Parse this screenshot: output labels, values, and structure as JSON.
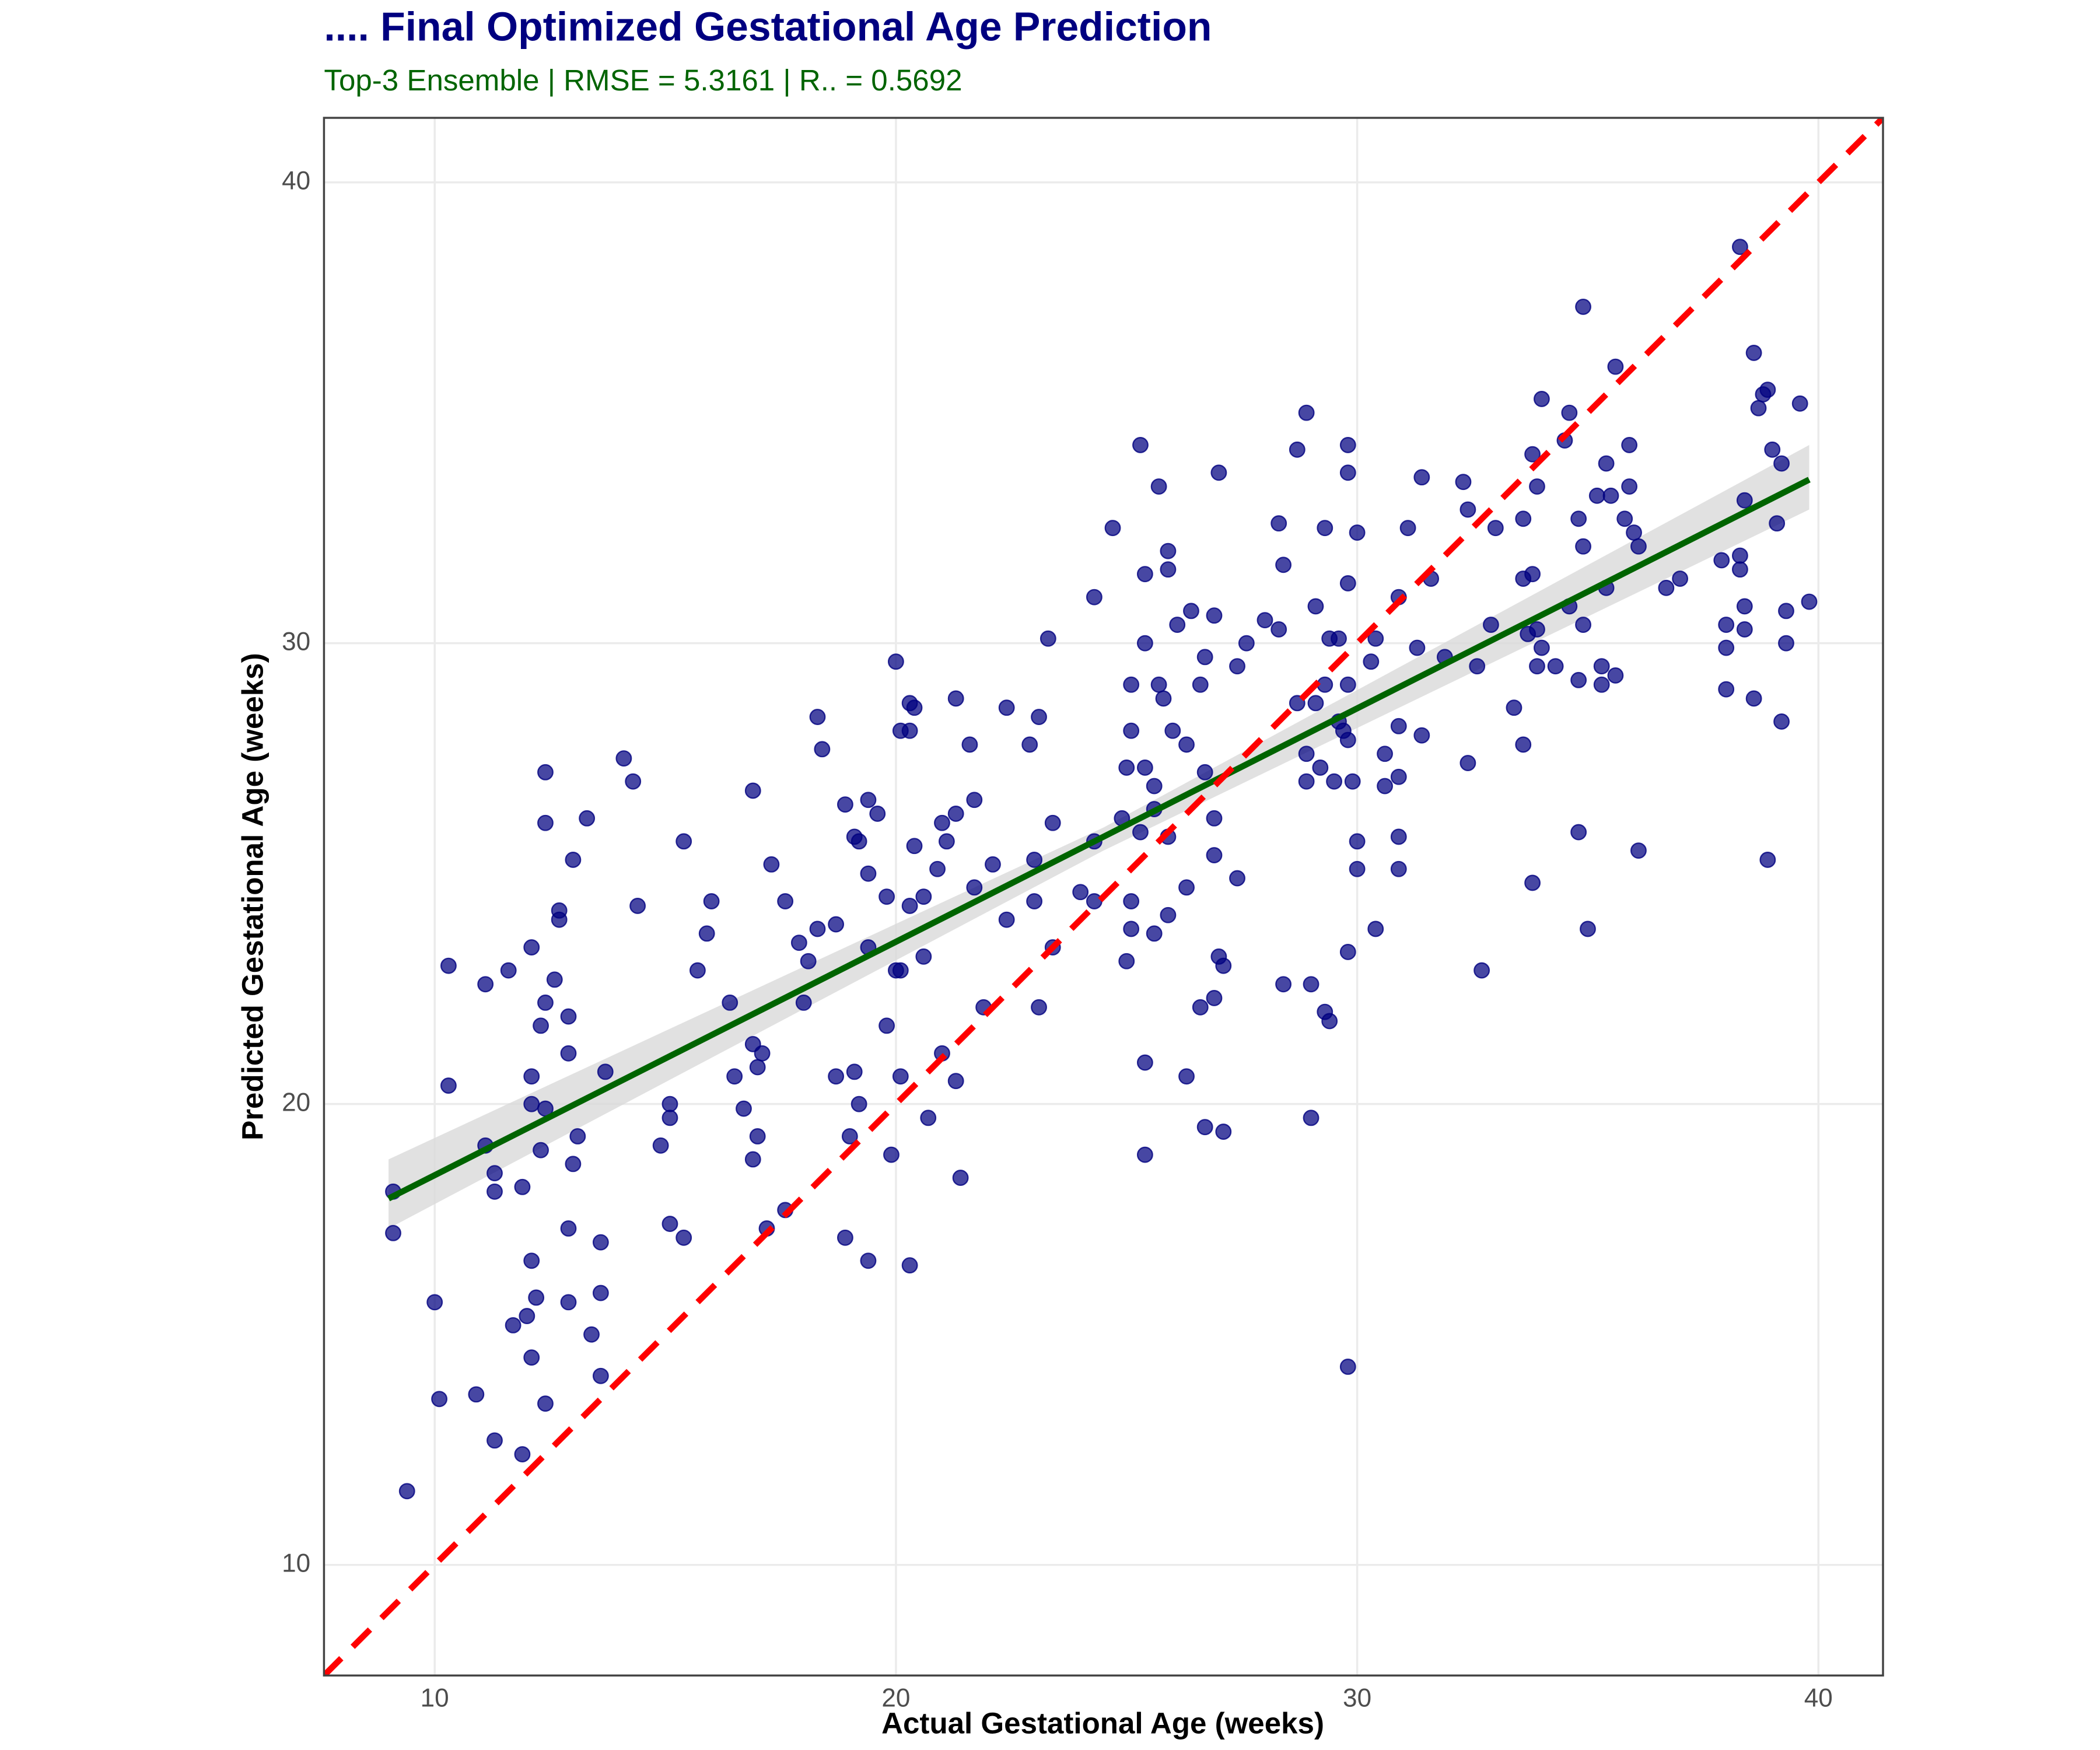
{
  "chart_data": {
    "type": "scatter",
    "title": ".... Final Optimized Gestational Age Prediction",
    "subtitle": "Top-3 Ensemble | RMSE = 5.3161 | R.. = 0.5692",
    "x_label": "Actual Gestational Age (weeks)",
    "y_label": "Predicted Gestational Age (weeks)",
    "xlim": [
      7.6,
      41.4
    ],
    "ylim": [
      7.6,
      41.4
    ],
    "xticks": [
      10,
      20,
      30,
      40
    ],
    "yticks": [
      10,
      20,
      30,
      40
    ],
    "grid": true,
    "color": "#00007f",
    "x": [
      9.1,
      9.1,
      9.4,
      10.0,
      10.1,
      10.3,
      10.3,
      10.9,
      11.1,
      11.1,
      11.3,
      11.3,
      11.3,
      11.6,
      11.7,
      11.9,
      11.9,
      12.0,
      12.1,
      12.1,
      12.1,
      12.1,
      12.2,
      12.1,
      12.3,
      12.3,
      12.4,
      12.4,
      12.4,
      12.4,
      12.4,
      12.6,
      12.7,
      12.7,
      12.9,
      12.9,
      12.9,
      12.9,
      13.0,
      13.0,
      13.1,
      13.3,
      13.4,
      13.6,
      13.6,
      13.6,
      13.7,
      14.1,
      14.3,
      14.4,
      14.9,
      15.1,
      15.1,
      15.1,
      15.4,
      15.4,
      15.7,
      15.9,
      16.0,
      16.4,
      16.5,
      16.7,
      16.9,
      16.9,
      16.9,
      17.0,
      17.0,
      17.1,
      17.2,
      17.3,
      17.6,
      17.6,
      17.9,
      18.0,
      18.1,
      18.3,
      18.3,
      18.4,
      18.7,
      18.7,
      18.9,
      18.9,
      19.0,
      19.1,
      19.1,
      19.2,
      19.2,
      19.4,
      19.4,
      19.4,
      19.4,
      19.6,
      19.8,
      19.8,
      19.9,
      20.0,
      20.0,
      20.1,
      20.1,
      20.1,
      20.3,
      20.3,
      20.3,
      20.3,
      20.4,
      20.4,
      20.6,
      20.6,
      20.7,
      20.9,
      21.0,
      21.0,
      21.1,
      21.3,
      21.3,
      21.3,
      21.4,
      21.6,
      21.7,
      21.7,
      21.9,
      22.1,
      22.4,
      22.4,
      22.9,
      23.0,
      23.0,
      23.1,
      23.1,
      23.3,
      23.4,
      23.4,
      24.0,
      24.3,
      24.3,
      24.3,
      24.7,
      24.9,
      25.0,
      25.0,
      25.1,
      25.1,
      25.1,
      25.1,
      25.3,
      25.3,
      25.4,
      25.4,
      25.4,
      25.4,
      25.4,
      25.6,
      25.6,
      25.6,
      25.7,
      25.7,
      25.8,
      25.9,
      25.9,
      25.9,
      25.9,
      26.0,
      26.1,
      26.3,
      26.3,
      26.3,
      26.4,
      26.6,
      26.6,
      26.7,
      26.7,
      26.7,
      26.9,
      26.9,
      26.9,
      26.9,
      27.0,
      27.0,
      27.1,
      27.1,
      27.4,
      27.4,
      27.6,
      28.0,
      28.3,
      28.3,
      28.4,
      28.4,
      28.7,
      28.7,
      28.9,
      28.9,
      28.9,
      29.0,
      29.0,
      29.1,
      29.1,
      29.2,
      29.3,
      29.3,
      29.3,
      29.4,
      29.4,
      29.5,
      29.6,
      29.6,
      29.7,
      29.8,
      29.8,
      29.8,
      29.8,
      29.8,
      29.8,
      29.8,
      29.9,
      30.0,
      30.0,
      30.0,
      30.3,
      30.4,
      30.4,
      30.6,
      30.6,
      30.9,
      30.9,
      30.9,
      30.9,
      30.9,
      31.1,
      31.3,
      31.4,
      31.4,
      31.6,
      31.9,
      32.3,
      32.4,
      32.4,
      32.6,
      32.7,
      32.9,
      33.0,
      33.4,
      33.6,
      33.6,
      33.6,
      33.7,
      33.8,
      33.8,
      33.8,
      33.9,
      33.9,
      33.9,
      34.0,
      34.0,
      34.3,
      34.5,
      34.6,
      34.6,
      34.8,
      34.8,
      34.8,
      34.9,
      34.9,
      34.9,
      35.0,
      35.2,
      35.3,
      35.3,
      35.4,
      35.4,
      35.5,
      35.6,
      35.6,
      35.8,
      35.9,
      35.9,
      36.0,
      36.1,
      36.1,
      36.7,
      37.0,
      37.9,
      38.0,
      38.0,
      38.0,
      38.3,
      38.3,
      38.3,
      38.4,
      38.4,
      38.4,
      38.6,
      38.6,
      38.7,
      38.8,
      38.9,
      38.9,
      39.0,
      39.1,
      39.2,
      39.2,
      39.3,
      39.3,
      39.6,
      39.8
    ],
    "y": [
      18.1,
      17.2,
      11.6,
      15.7,
      13.6,
      23.0,
      20.4,
      13.7,
      22.6,
      19.1,
      18.5,
      18.1,
      12.7,
      22.9,
      15.2,
      18.2,
      12.4,
      15.4,
      20.0,
      23.4,
      16.6,
      14.5,
      15.8,
      20.6,
      21.7,
      19.0,
      27.2,
      26.1,
      22.2,
      13.5,
      19.9,
      22.7,
      24.2,
      24.0,
      21.1,
      17.3,
      21.9,
      15.7,
      25.3,
      18.7,
      19.3,
      26.2,
      15.0,
      17.0,
      15.9,
      14.1,
      20.7,
      27.5,
      27.0,
      24.3,
      19.1,
      20.0,
      19.7,
      17.4,
      25.7,
      17.1,
      22.9,
      23.7,
      24.4,
      22.2,
      20.6,
      19.9,
      26.8,
      21.3,
      18.8,
      20.8,
      19.3,
      21.1,
      17.3,
      25.2,
      24.4,
      17.7,
      23.5,
      22.2,
      23.1,
      28.4,
      23.8,
      27.7,
      20.6,
      23.9,
      17.1,
      26.5,
      19.3,
      25.8,
      20.7,
      20.0,
      25.7,
      25.0,
      26.6,
      23.4,
      16.6,
      26.3,
      24.5,
      21.7,
      18.9,
      22.9,
      29.6,
      22.9,
      28.1,
      20.6,
      28.7,
      28.1,
      16.5,
      24.3,
      28.6,
      25.6,
      24.5,
      23.2,
      19.7,
      25.1,
      26.1,
      21.1,
      25.7,
      26.3,
      28.8,
      20.5,
      18.4,
      27.8,
      26.6,
      24.7,
      22.1,
      25.2,
      28.6,
      24.0,
      27.8,
      25.3,
      24.4,
      28.4,
      22.1,
      30.1,
      26.1,
      23.4,
      24.6,
      31.0,
      24.4,
      25.7,
      32.5,
      26.2,
      23.1,
      27.3,
      24.4,
      29.1,
      28.1,
      23.8,
      34.3,
      25.9,
      27.3,
      31.5,
      20.9,
      18.9,
      30.0,
      26.9,
      23.7,
      26.4,
      33.4,
      29.1,
      28.8,
      31.6,
      32.0,
      25.8,
      24.1,
      28.1,
      30.4,
      27.8,
      24.7,
      20.6,
      30.7,
      22.1,
      29.1,
      19.5,
      29.7,
      27.2,
      26.2,
      30.6,
      25.4,
      22.3,
      33.7,
      23.2,
      19.4,
      23.0,
      29.5,
      24.9,
      30.0,
      30.5,
      30.3,
      32.6,
      31.7,
      22.6,
      34.2,
      28.7,
      27.6,
      27.0,
      35.0,
      22.6,
      19.7,
      30.8,
      28.7,
      27.3,
      29.1,
      22.0,
      32.5,
      21.8,
      30.1,
      27.0,
      30.1,
      28.3,
      28.1,
      34.3,
      33.7,
      31.3,
      23.3,
      14.3,
      29.1,
      27.9,
      27.0,
      25.7,
      25.1,
      32.4,
      29.6,
      23.8,
      30.1,
      27.6,
      26.9,
      31.0,
      28.2,
      27.1,
      25.1,
      25.8,
      32.5,
      29.9,
      33.6,
      28.0,
      31.4,
      29.7,
      33.5,
      27.4,
      32.9,
      29.5,
      22.9,
      30.4,
      32.5,
      28.6,
      27.8,
      31.4,
      32.7,
      30.2,
      34.1,
      24.8,
      31.5,
      30.3,
      29.5,
      33.4,
      35.3,
      29.9,
      29.5,
      34.4,
      35.0,
      30.8,
      32.7,
      29.2,
      25.9,
      37.3,
      32.1,
      30.4,
      23.8,
      33.2,
      29.5,
      29.1,
      33.9,
      31.2,
      33.2,
      36.0,
      29.3,
      32.7,
      34.3,
      33.4,
      32.4,
      25.5,
      32.1,
      31.2,
      31.4,
      31.8,
      30.4,
      29.9,
      29.0,
      38.6,
      31.6,
      31.9,
      33.1,
      30.8,
      30.3,
      36.3,
      28.8,
      35.1,
      35.4,
      35.5,
      25.3,
      34.2,
      32.6,
      33.9,
      28.3,
      30.0,
      30.7,
      35.2,
      30.9
    ],
    "fit": {
      "x": [
        9.0,
        39.8
      ],
      "y": [
        17.95,
        33.55
      ],
      "color": "#006400"
    },
    "fit_band": {
      "x": [
        9.0,
        24.5,
        39.8
      ],
      "lower": [
        17.3,
        25.5,
        32.9
      ],
      "upper": [
        18.8,
        26.0,
        34.3
      ],
      "color": "#d9d9d9"
    },
    "reference_line": {
      "x": [
        7.6,
        41.4
      ],
      "y": [
        7.6,
        41.4
      ],
      "color": "#ff0000"
    }
  }
}
